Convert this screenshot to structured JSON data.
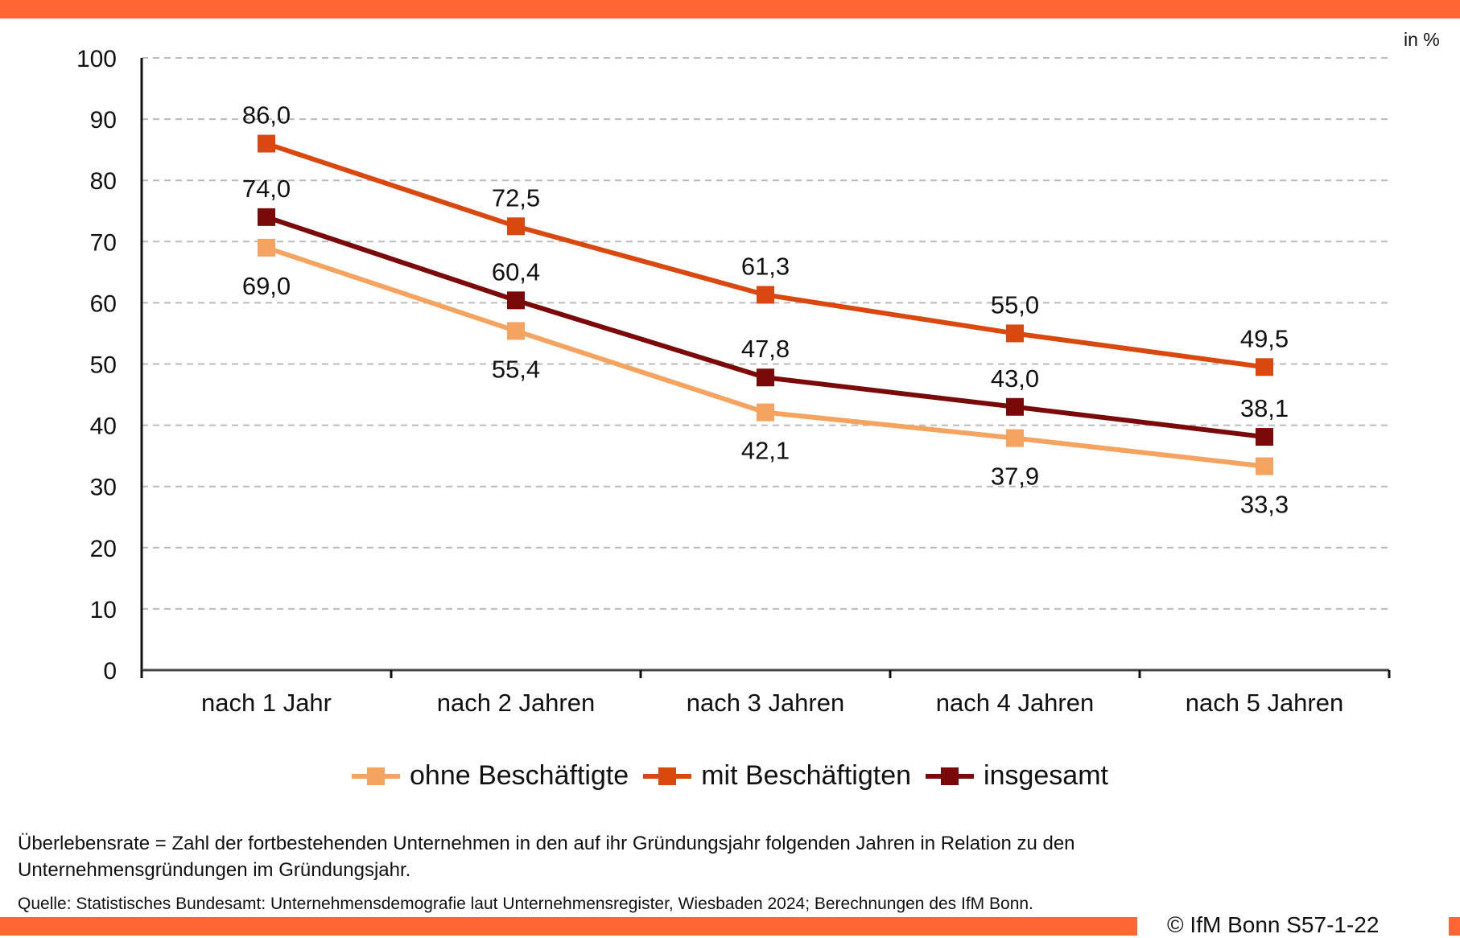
{
  "header": {
    "unit_label": "in %"
  },
  "legend": [
    {
      "label": "ohne Beschäftigte",
      "color": "#F4A460"
    },
    {
      "label": "mit Beschäftigten",
      "color": "#D9480F"
    },
    {
      "label": "insgesamt",
      "color": "#7A0A0A"
    }
  ],
  "footnote": {
    "line1": "Überlebensrate = Zahl der fortbestehenden Unternehmen in den auf ihr Gründungsjahr folgenden Jahren in Relation zu den",
    "line2": "Unternehmensgründungen im Gründungsjahr."
  },
  "source": "Quelle: Statistisches Bundesamt: Unternehmensdemografie laut Unternehmensregister, Wiesbaden 2024; Berechnungen des IfM Bonn.",
  "copyright": "© IfM Bonn S57-1-22",
  "colors": {
    "brand_bar": "#FF6633",
    "gridline": "#BBBBBB",
    "axis": "#111111"
  },
  "chart_data": {
    "type": "line",
    "title": "",
    "xlabel": "",
    "ylabel": "in %",
    "ylim": [
      0,
      100
    ],
    "yticks": [
      0,
      10,
      20,
      30,
      40,
      50,
      60,
      70,
      80,
      90,
      100
    ],
    "grid": true,
    "grid_style": "dashed-horizontal",
    "legend_position": "bottom-center",
    "categories": [
      "nach 1 Jahr",
      "nach 2 Jahren",
      "nach 3 Jahren",
      "nach 4 Jahren",
      "nach 5 Jahren"
    ],
    "series": [
      {
        "name": "ohne Beschäftigte",
        "color": "#F4A460",
        "values": [
          69.0,
          55.4,
          42.1,
          37.9,
          33.3
        ],
        "labels": [
          "69,0",
          "55,4",
          "42,1",
          "37,9",
          "33,3"
        ],
        "label_position": "below"
      },
      {
        "name": "mit Beschäftigten",
        "color": "#D9480F",
        "values": [
          86.0,
          72.5,
          61.3,
          55.0,
          49.5
        ],
        "labels": [
          "86,0",
          "72,5",
          "61,3",
          "55,0",
          "49,5"
        ],
        "label_position": "above"
      },
      {
        "name": "insgesamt",
        "color": "#7A0A0A",
        "values": [
          74.0,
          60.4,
          47.8,
          43.0,
          38.1
        ],
        "labels": [
          "74,0",
          "60,4",
          "47,8",
          "43,0",
          "38,1"
        ],
        "label_position": "above"
      }
    ]
  }
}
